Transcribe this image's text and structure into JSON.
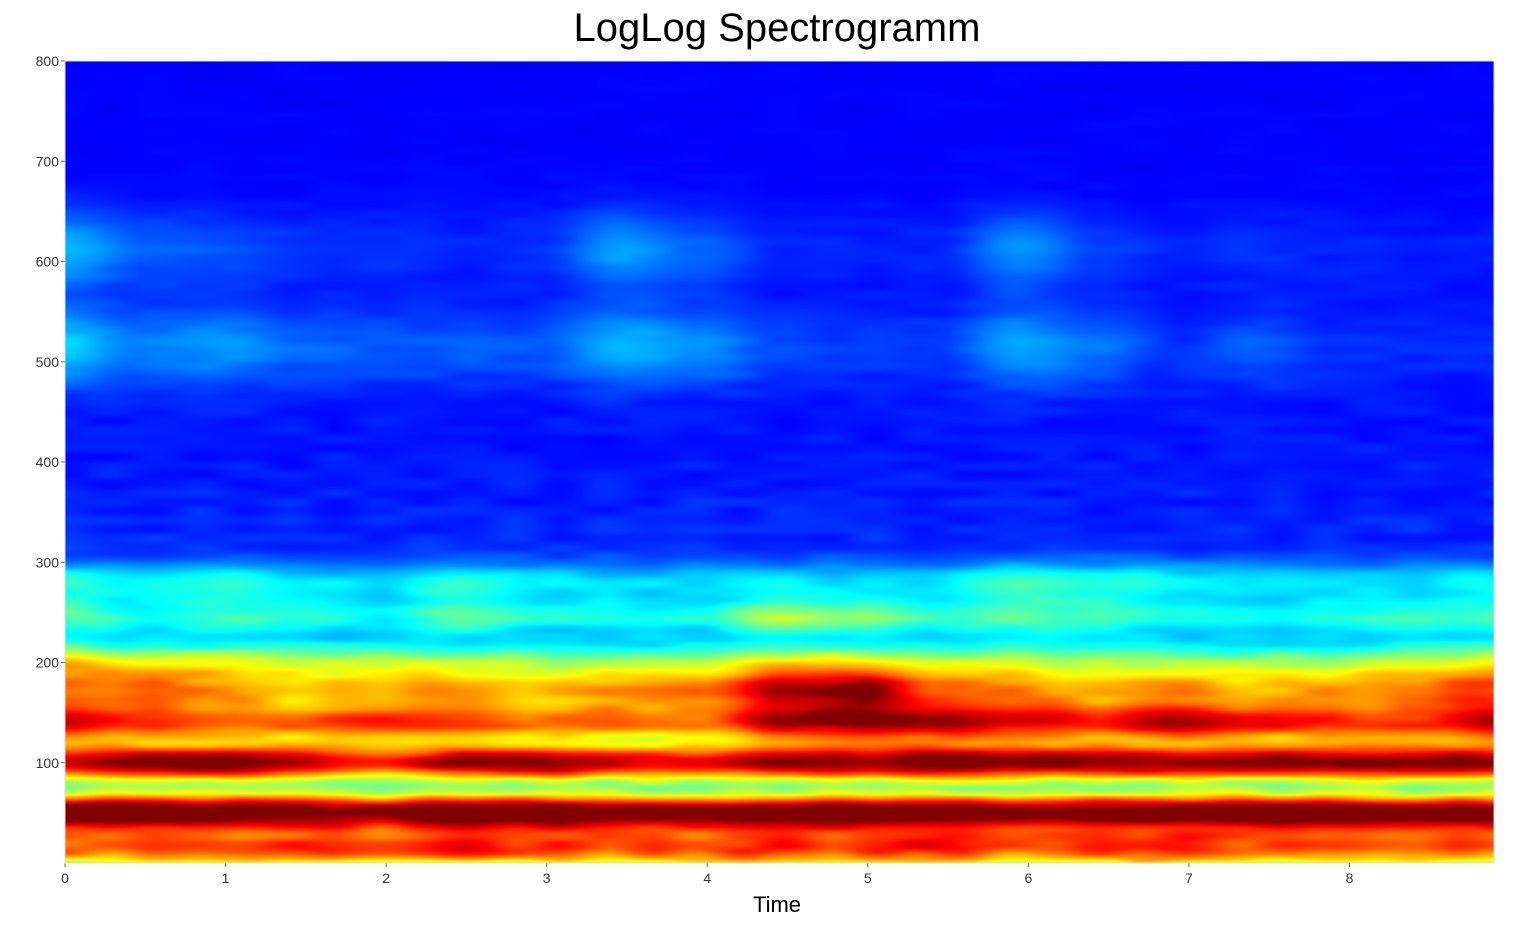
{
  "chart_data": {
    "type": "heatmap",
    "title": "LogLog Spectrogramm",
    "xlabel": "Time",
    "ylabel": "",
    "xlim": [
      0,
      8.9
    ],
    "ylim": [
      0,
      800
    ],
    "x_ticks": [
      "0",
      "1",
      "2",
      "3",
      "4",
      "5",
      "6",
      "7",
      "8"
    ],
    "y_ticks": [
      "100",
      "200",
      "300",
      "400",
      "500",
      "600",
      "700",
      "800"
    ],
    "colormap": "jet",
    "background_color": "#00007f",
    "grid": false,
    "bands": [
      {
        "y": 50,
        "amp": [
          0.98,
          1.0,
          0.95,
          0.9,
          0.85,
          0.95,
          0.97,
          0.9,
          0.85,
          0.92,
          0.97,
          0.93,
          0.9,
          0.92,
          0.95,
          0.98,
          0.95,
          0.9,
          0.92
        ]
      },
      {
        "y": 100,
        "amp": [
          0.85,
          0.93,
          0.95,
          0.85,
          0.72,
          0.9,
          0.93,
          0.8,
          0.78,
          0.88,
          0.9,
          0.95,
          0.93,
          0.92,
          0.88,
          0.9,
          0.92,
          0.9,
          0.88
        ]
      },
      {
        "y": 140,
        "amp": [
          0.8,
          0.7,
          0.65,
          0.65,
          0.72,
          0.7,
          0.6,
          0.62,
          0.6,
          0.85,
          0.92,
          0.9,
          0.8,
          0.75,
          0.85,
          0.75,
          0.7,
          0.7,
          0.85
        ]
      },
      {
        "y": 172,
        "amp": [
          0.55,
          0.6,
          0.55,
          0.45,
          0.5,
          0.55,
          0.5,
          0.55,
          0.6,
          0.8,
          0.88,
          0.6,
          0.55,
          0.5,
          0.55,
          0.5,
          0.55,
          0.6,
          0.65
        ]
      },
      {
        "y": 15,
        "amp": [
          0.5,
          0.5,
          0.5,
          0.55,
          0.5,
          0.6,
          0.55,
          0.5,
          0.55,
          0.6,
          0.55,
          0.6,
          0.5,
          0.55,
          0.6,
          0.5,
          0.55,
          0.5,
          0.5
        ]
      },
      {
        "y": 200,
        "amp": [
          0.55,
          0.45,
          0.45,
          0.4,
          0.4,
          0.35,
          0.35,
          0.35,
          0.35,
          0.45,
          0.45,
          0.4,
          0.4,
          0.35,
          0.35,
          0.35,
          0.35,
          0.4,
          0.45
        ]
      },
      {
        "y": 245,
        "amp": [
          0.35,
          0.25,
          0.3,
          0.28,
          0.22,
          0.35,
          0.25,
          0.25,
          0.25,
          0.45,
          0.4,
          0.3,
          0.35,
          0.3,
          0.25,
          0.25,
          0.25,
          0.3,
          0.3
        ]
      },
      {
        "y": 280,
        "amp": [
          0.3,
          0.25,
          0.3,
          0.22,
          0.22,
          0.3,
          0.22,
          0.2,
          0.2,
          0.22,
          0.2,
          0.22,
          0.35,
          0.3,
          0.25,
          0.2,
          0.2,
          0.2,
          0.25
        ]
      },
      {
        "y": 515,
        "amp": [
          0.25,
          0.15,
          0.18,
          0.12,
          0.1,
          0.1,
          0.1,
          0.22,
          0.18,
          0.08,
          0.06,
          0.06,
          0.2,
          0.14,
          0.05,
          0.1,
          0.05,
          0.04,
          0.04
        ]
      },
      {
        "y": 612,
        "amp": [
          0.22,
          0.12,
          0.1,
          0.06,
          0.06,
          0.04,
          0.06,
          0.2,
          0.12,
          0.04,
          0.04,
          0.04,
          0.18,
          0.08,
          0.04,
          0.05,
          0.04,
          0.03,
          0.03
        ]
      }
    ]
  }
}
